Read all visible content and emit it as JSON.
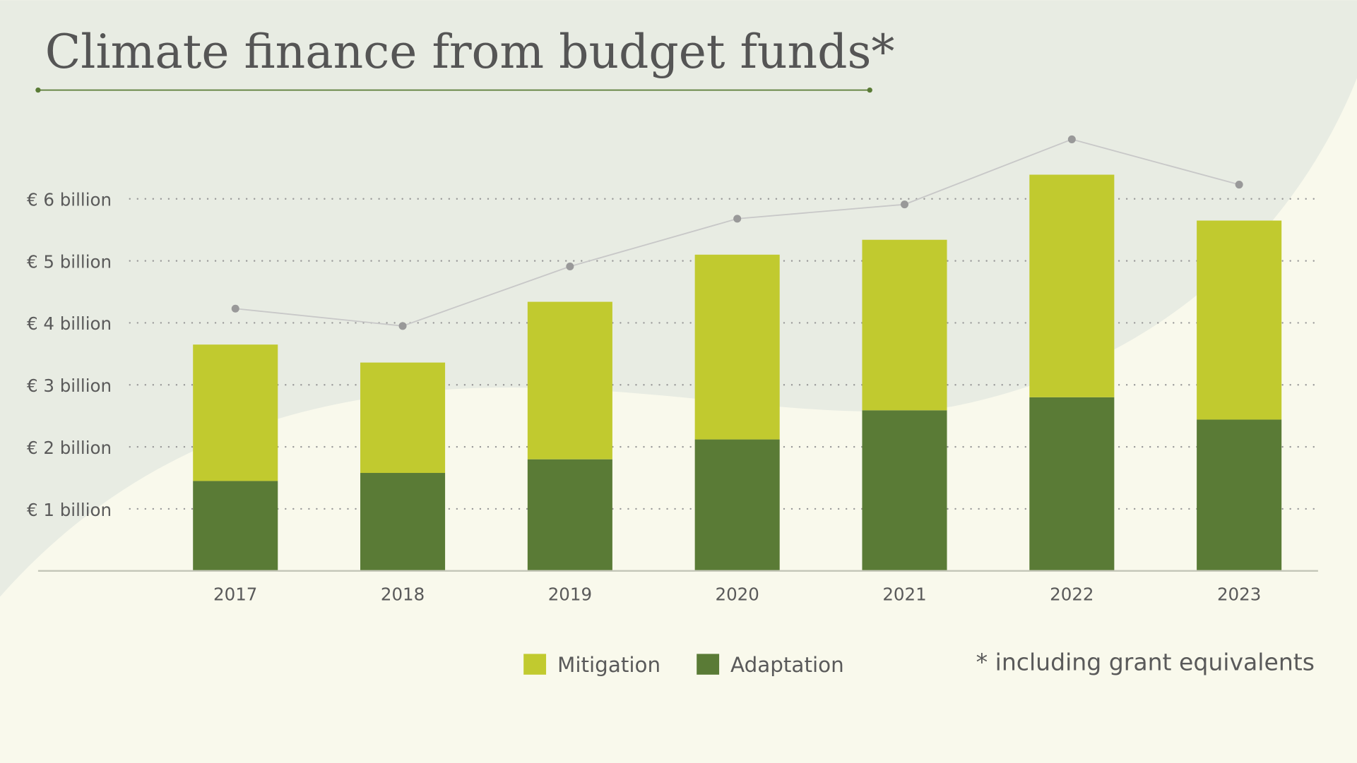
{
  "chart_data": {
    "type": "bar",
    "stacked": true,
    "title": "Climate finance from budget funds*",
    "footnote": "* including grant equivalents",
    "categories": [
      "2017",
      "2018",
      "2019",
      "2020",
      "2021",
      "2022",
      "2023"
    ],
    "series": [
      {
        "name": "Adaptation",
        "color": "#5a7b36",
        "values": [
          1.45,
          1.58,
          1.8,
          2.12,
          2.59,
          2.8,
          2.44
        ]
      },
      {
        "name": "Mitigation",
        "color": "#c1ca2f",
        "values": [
          2.2,
          1.78,
          2.54,
          2.98,
          2.75,
          3.59,
          3.21
        ]
      }
    ],
    "line": {
      "color": "#999999",
      "values": [
        4.23,
        3.95,
        4.91,
        5.68,
        5.91,
        6.96,
        6.23
      ]
    },
    "y_ticks": [
      {
        "value": 1,
        "label": "€ 1 billion"
      },
      {
        "value": 2,
        "label": "€ 2 billion"
      },
      {
        "value": 3,
        "label": "€ 3 billion"
      },
      {
        "value": 4,
        "label": "€ 4 billion"
      },
      {
        "value": 5,
        "label": "€ 5 billion"
      },
      {
        "value": 6,
        "label": "€ 6 billion"
      }
    ],
    "ylim": [
      0,
      7
    ],
    "grid": true,
    "legend_position": "bottom",
    "legend": [
      "Mitigation",
      "Adaptation"
    ]
  }
}
